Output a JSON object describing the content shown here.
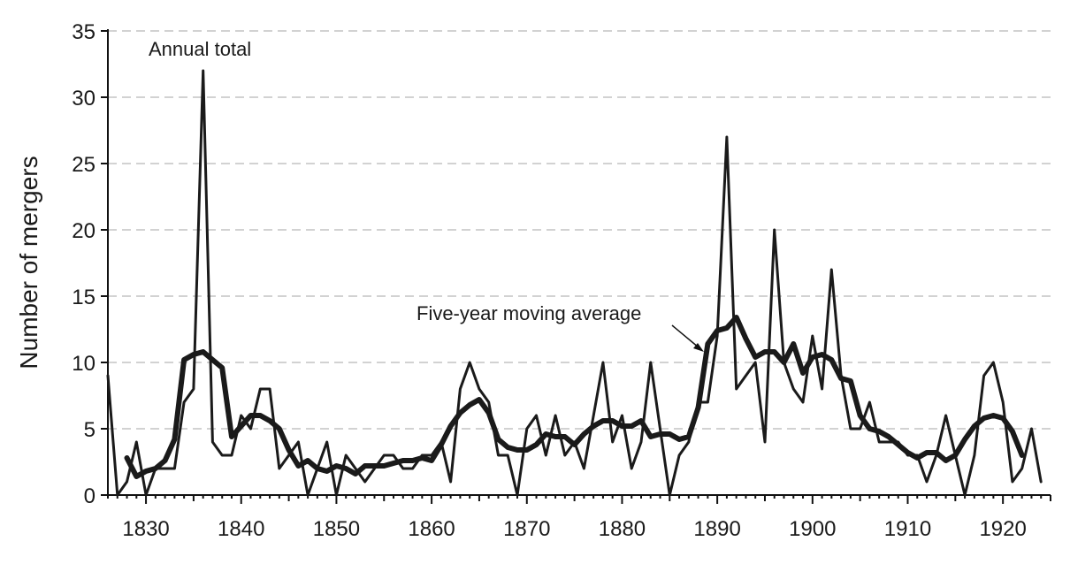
{
  "chart_data": {
    "type": "line",
    "title": "",
    "xlabel": "",
    "ylabel": "Number of mergers",
    "xlim": [
      1826,
      1925
    ],
    "ylim": [
      0,
      35
    ],
    "grid": "horizontal dashed",
    "x_ticks": [
      1830,
      1840,
      1850,
      1860,
      1870,
      1880,
      1890,
      1900,
      1910,
      1920
    ],
    "y_ticks": [
      0,
      5,
      10,
      15,
      20,
      25,
      30,
      35
    ],
    "annotations": [
      {
        "text": "Annual total",
        "series": "annual"
      },
      {
        "text": "Five-year moving average",
        "series": "moving_average"
      }
    ],
    "series": [
      {
        "key": "annual",
        "color": "#1a1a1a",
        "x": [
          1826,
          1827,
          1828,
          1829,
          1830,
          1831,
          1832,
          1833,
          1834,
          1835,
          1836,
          1837,
          1838,
          1839,
          1840,
          1841,
          1842,
          1843,
          1844,
          1845,
          1846,
          1847,
          1848,
          1849,
          1850,
          1851,
          1852,
          1853,
          1854,
          1855,
          1856,
          1857,
          1858,
          1859,
          1860,
          1861,
          1862,
          1863,
          1864,
          1865,
          1866,
          1867,
          1868,
          1869,
          1870,
          1871,
          1872,
          1873,
          1874,
          1875,
          1876,
          1877,
          1878,
          1879,
          1880,
          1881,
          1882,
          1883,
          1884,
          1885,
          1886,
          1887,
          1888,
          1889,
          1890,
          1891,
          1892,
          1893,
          1894,
          1895,
          1896,
          1897,
          1898,
          1899,
          1900,
          1901,
          1902,
          1903,
          1904,
          1905,
          1906,
          1907,
          1908,
          1909,
          1910,
          1911,
          1912,
          1913,
          1914,
          1915,
          1916,
          1917,
          1918,
          1919,
          1920,
          1921,
          1922,
          1923,
          1924
        ],
        "values": [
          9,
          0,
          1,
          4,
          0,
          2,
          2,
          2,
          7,
          8,
          32,
          4,
          3,
          3,
          6,
          5,
          8,
          8,
          2,
          3,
          4,
          0,
          2,
          4,
          0,
          3,
          2,
          1,
          2,
          3,
          3,
          2,
          2,
          3,
          3,
          4,
          1,
          8,
          10,
          8,
          7,
          3,
          3,
          0,
          5,
          6,
          3,
          6,
          3,
          4,
          2,
          6,
          10,
          4,
          6,
          2,
          4,
          10,
          5,
          0,
          3,
          4,
          7,
          7,
          12,
          27,
          8,
          9,
          10,
          4,
          20,
          10,
          8,
          7,
          12,
          8,
          17,
          9,
          5,
          5,
          7,
          4,
          4,
          4,
          3,
          3,
          1,
          3,
          6,
          3,
          0,
          3,
          9,
          10,
          7,
          1,
          2,
          5,
          1
        ]
      },
      {
        "key": "moving_average",
        "color": "#1a1a1a",
        "x": [
          1828,
          1829,
          1830,
          1831,
          1832,
          1833,
          1834,
          1835,
          1836,
          1837,
          1838,
          1839,
          1840,
          1841,
          1842,
          1843,
          1844,
          1845,
          1846,
          1847,
          1848,
          1849,
          1850,
          1851,
          1852,
          1853,
          1854,
          1855,
          1856,
          1857,
          1858,
          1859,
          1860,
          1861,
          1862,
          1863,
          1864,
          1865,
          1866,
          1867,
          1868,
          1869,
          1870,
          1871,
          1872,
          1873,
          1874,
          1875,
          1876,
          1877,
          1878,
          1879,
          1880,
          1881,
          1882,
          1883,
          1884,
          1885,
          1886,
          1887,
          1888,
          1889,
          1890,
          1891,
          1892,
          1893,
          1894,
          1895,
          1896,
          1897,
          1898,
          1899,
          1900,
          1901,
          1902,
          1903,
          1904,
          1905,
          1906,
          1907,
          1908,
          1909,
          1910,
          1911,
          1912,
          1913,
          1914,
          1915,
          1916,
          1917,
          1918,
          1919,
          1920,
          1921,
          1922
        ],
        "values": [
          2.8,
          1.4,
          1.8,
          2.0,
          2.6,
          4.2,
          10.2,
          10.6,
          10.8,
          10.2,
          9.6,
          4.4,
          5.2,
          6.0,
          6.0,
          5.6,
          5.0,
          3.4,
          2.2,
          2.6,
          2.0,
          1.8,
          2.2,
          2.0,
          1.6,
          2.2,
          2.2,
          2.2,
          2.4,
          2.6,
          2.6,
          2.8,
          2.6,
          3.8,
          5.2,
          6.2,
          6.8,
          7.2,
          6.2,
          4.2,
          3.6,
          3.4,
          3.4,
          3.8,
          4.6,
          4.4,
          4.4,
          3.8,
          4.6,
          5.2,
          5.6,
          5.6,
          5.2,
          5.2,
          5.6,
          4.4,
          4.6,
          4.6,
          4.2,
          4.4,
          6.6,
          11.4,
          12.4,
          12.6,
          13.4,
          11.8,
          10.4,
          10.8,
          10.8,
          10.0,
          11.4,
          9.2,
          10.4,
          10.6,
          10.2,
          8.8,
          8.6,
          6.0,
          5.0,
          4.8,
          4.4,
          3.8,
          3.2,
          2.8,
          3.2,
          3.2,
          2.6,
          3.0,
          4.2,
          5.2,
          5.8,
          6.0,
          5.8,
          4.8,
          3.0
        ]
      }
    ]
  }
}
